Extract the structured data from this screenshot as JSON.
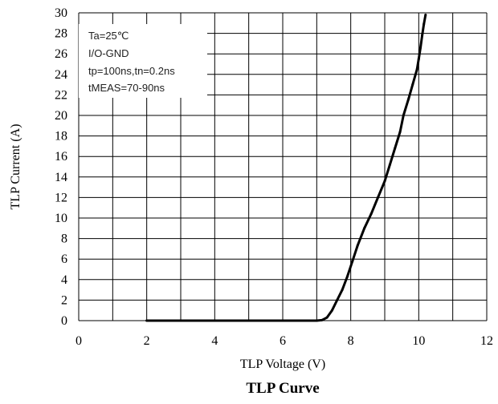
{
  "chart_data": {
    "type": "line",
    "title": "TLP Curve",
    "xlabel": "TLP Voltage (V)",
    "ylabel": "TLP Current (A)",
    "xlim": [
      0,
      12
    ],
    "ylim": [
      0,
      30
    ],
    "x_ticks": [
      "0",
      "2",
      "4",
      "6",
      "8",
      "10",
      "12"
    ],
    "y_ticks": [
      "0",
      "2",
      "4",
      "6",
      "8",
      "10",
      "12",
      "14",
      "16",
      "18",
      "20",
      "22",
      "24",
      "26",
      "28",
      "30"
    ],
    "grid": true,
    "annotations": [
      "Ta=25℃",
      "I/O-GND",
      "tp=100ns,tn=0.2ns",
      "tMEAS=70-90ns"
    ],
    "series": [
      {
        "color": "#000000",
        "points": [
          [
            2.0,
            0
          ],
          [
            3.0,
            0
          ],
          [
            4.0,
            0
          ],
          [
            5.0,
            0
          ],
          [
            6.0,
            0
          ],
          [
            7.0,
            0
          ],
          [
            7.15,
            0.05
          ],
          [
            7.3,
            0.3
          ],
          [
            7.45,
            1.0
          ],
          [
            7.6,
            2.0
          ],
          [
            7.75,
            3.0
          ],
          [
            7.9,
            4.3
          ],
          [
            8.05,
            5.8
          ],
          [
            8.2,
            7.3
          ],
          [
            8.4,
            9.0
          ],
          [
            8.6,
            10.4
          ],
          [
            8.8,
            12.0
          ],
          [
            9.0,
            13.6
          ],
          [
            9.15,
            15.2
          ],
          [
            9.3,
            16.8
          ],
          [
            9.45,
            18.4
          ],
          [
            9.55,
            20.0
          ],
          [
            9.7,
            21.6
          ],
          [
            9.82,
            23.0
          ],
          [
            9.95,
            24.5
          ],
          [
            10.0,
            25.5
          ],
          [
            10.05,
            26.6
          ],
          [
            10.1,
            27.8
          ],
          [
            10.15,
            28.9
          ],
          [
            10.2,
            29.8
          ]
        ]
      }
    ]
  }
}
